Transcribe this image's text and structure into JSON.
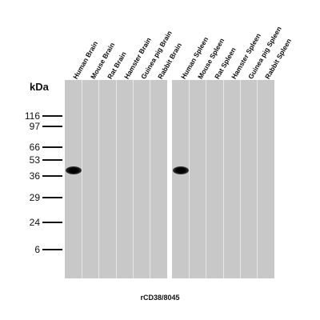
{
  "axis_label": "kDa",
  "markers": [
    "116",
    "97",
    "66",
    "53",
    "36",
    "29",
    "24",
    "6"
  ],
  "lanes": [
    "Human Brain",
    "Mouse Brain",
    "Rat Brain",
    "Hamster Brain",
    "Guinea pig Brain",
    "Rabbit Brain",
    "Human Spleen",
    "Mouse Spleen",
    "Rat Spleen",
    "Hamster Spleen",
    "Guinea pig Spleen",
    "Rabbit Spleen"
  ],
  "caption": "rCD38/8045"
}
